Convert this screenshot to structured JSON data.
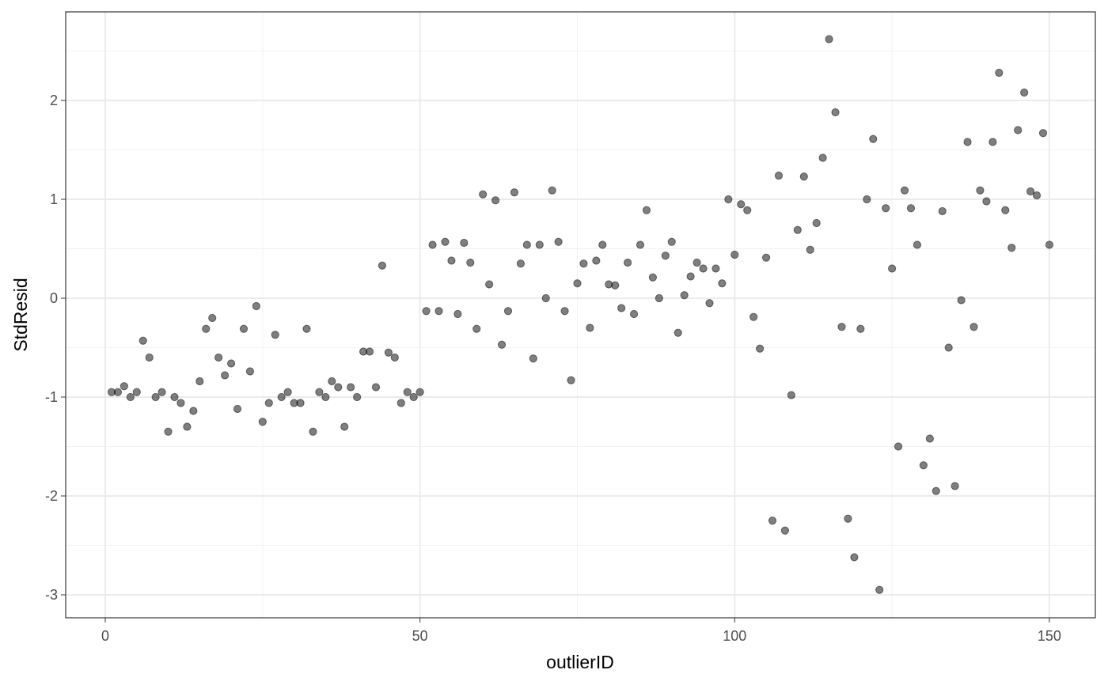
{
  "chart_data": {
    "type": "scatter",
    "x_label": "outlierID",
    "y_label": "StdResid",
    "xlim": [
      -6.29,
      157.3
    ],
    "ylim": [
      -3.232,
      2.896
    ],
    "xticks": [
      0,
      50,
      100,
      150
    ],
    "yticks": [
      -3,
      -2,
      -1,
      0,
      1,
      2
    ],
    "grid": true,
    "series": [
      {
        "color": "#000000",
        "x": [
          1,
          2,
          3,
          4,
          5,
          6,
          7,
          8,
          9,
          10,
          11,
          12,
          13,
          14,
          15,
          16,
          17,
          18,
          19,
          20,
          21,
          22,
          23,
          24,
          25,
          26,
          27,
          28,
          29,
          30,
          31,
          32,
          33,
          34,
          35,
          36,
          37,
          38,
          39,
          40,
          41,
          42,
          43,
          44,
          45,
          46,
          47,
          48,
          49,
          50,
          51,
          52,
          53,
          54,
          55,
          56,
          57,
          58,
          59,
          60,
          61,
          62,
          63,
          64,
          65,
          66,
          67,
          68,
          69,
          70,
          71,
          72,
          73,
          74,
          75,
          76,
          77,
          78,
          79,
          80,
          81,
          82,
          83,
          84,
          85,
          86,
          87,
          88,
          89,
          90,
          91,
          92,
          93,
          94,
          95,
          96,
          97,
          98,
          99,
          100,
          101,
          102,
          103,
          104,
          105,
          106,
          107,
          108,
          109,
          110,
          111,
          112,
          113,
          114,
          115,
          116,
          117,
          118,
          119,
          120,
          121,
          122,
          123,
          124,
          125,
          126,
          127,
          128,
          129,
          130,
          131,
          132,
          133,
          134,
          135,
          136,
          137,
          138,
          139,
          140,
          141,
          142,
          143,
          144,
          145,
          146,
          147,
          148,
          149,
          150
        ],
        "values": [
          -0.95,
          -0.95,
          -0.89,
          -1.0,
          -0.95,
          -0.43,
          -0.6,
          -1.0,
          -0.95,
          -1.35,
          -1.0,
          -1.06,
          -1.3,
          -1.14,
          -0.84,
          -0.31,
          -0.2,
          -0.6,
          -0.78,
          -0.66,
          -1.12,
          -0.31,
          -0.74,
          -0.08,
          -1.25,
          -1.06,
          -0.37,
          -1.0,
          -0.95,
          -1.06,
          -1.06,
          -0.31,
          -1.35,
          -0.95,
          -1.0,
          -0.84,
          -0.9,
          -1.3,
          -0.9,
          -1.0,
          -0.54,
          -0.54,
          -0.9,
          0.33,
          -0.55,
          -0.6,
          -1.06,
          -0.95,
          -1.0,
          -0.95,
          -0.13,
          0.54,
          -0.13,
          0.57,
          0.38,
          -0.16,
          0.56,
          0.36,
          -0.31,
          1.05,
          0.14,
          0.99,
          -0.47,
          -0.13,
          1.07,
          0.35,
          0.54,
          -0.61,
          0.54,
          0.0,
          1.09,
          0.57,
          -0.13,
          -0.83,
          0.15,
          0.35,
          -0.3,
          0.38,
          0.54,
          0.14,
          0.13,
          -0.1,
          0.36,
          -0.16,
          0.54,
          0.89,
          0.21,
          0.0,
          0.43,
          0.57,
          -0.35,
          0.03,
          0.22,
          0.36,
          0.3,
          -0.05,
          0.3,
          0.15,
          1.0,
          0.44,
          0.95,
          0.89,
          -0.19,
          -0.51,
          0.41,
          -2.25,
          1.24,
          -2.35,
          -0.98,
          0.69,
          1.23,
          0.49,
          0.76,
          1.42,
          2.62,
          1.88,
          -0.29,
          -2.23,
          -2.62,
          -0.31,
          1.0,
          1.61,
          -2.95,
          0.91,
          0.3,
          -1.5,
          1.09,
          0.91,
          0.54,
          -1.69,
          -1.42,
          -1.95,
          0.88,
          -0.5,
          -1.9,
          -0.02,
          1.58,
          -0.29,
          1.09,
          0.98,
          1.58,
          2.28,
          0.89,
          0.51,
          1.7,
          2.08,
          1.08,
          1.04,
          1.67,
          0.54
        ]
      }
    ]
  }
}
